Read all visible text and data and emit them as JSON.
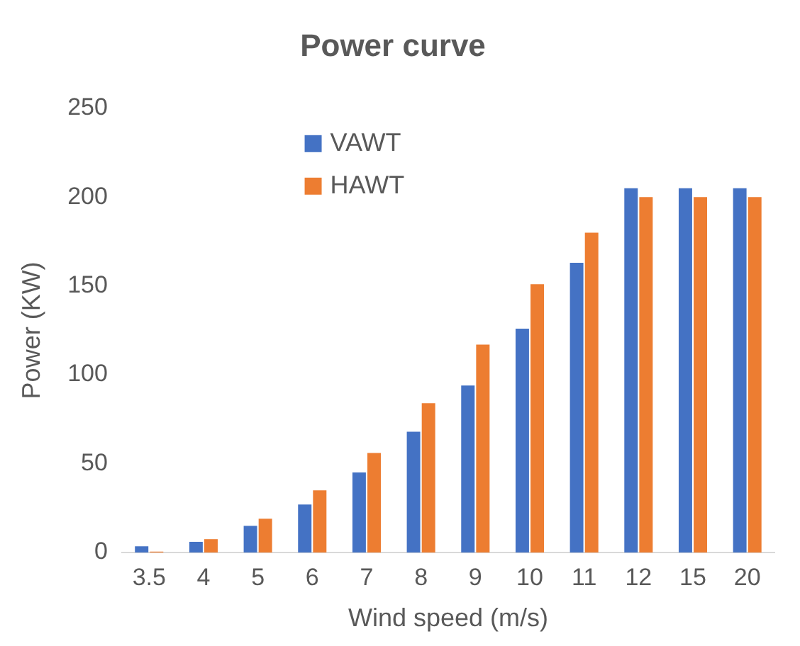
{
  "chart_data": {
    "type": "bar",
    "title": "Power curve",
    "xlabel": "Wind speed (m/s)",
    "ylabel": "Power (KW)",
    "categories": [
      "3.5",
      "4",
      "5",
      "6",
      "7",
      "8",
      "9",
      "10",
      "11",
      "12",
      "15",
      "20"
    ],
    "series": [
      {
        "name": "VAWT",
        "color": "#4472c4",
        "values": [
          3.5,
          6,
          15,
          27,
          45,
          68,
          94,
          126,
          163,
          205,
          205,
          205
        ]
      },
      {
        "name": "HAWT",
        "color": "#ed7d31",
        "values": [
          0.5,
          7.5,
          19,
          35,
          56,
          84,
          117,
          151,
          180,
          200,
          200,
          200
        ]
      }
    ],
    "ylim": [
      0,
      250
    ],
    "yticks": [
      0,
      50,
      100,
      150,
      200,
      250
    ],
    "grid": false,
    "legend": "top"
  }
}
